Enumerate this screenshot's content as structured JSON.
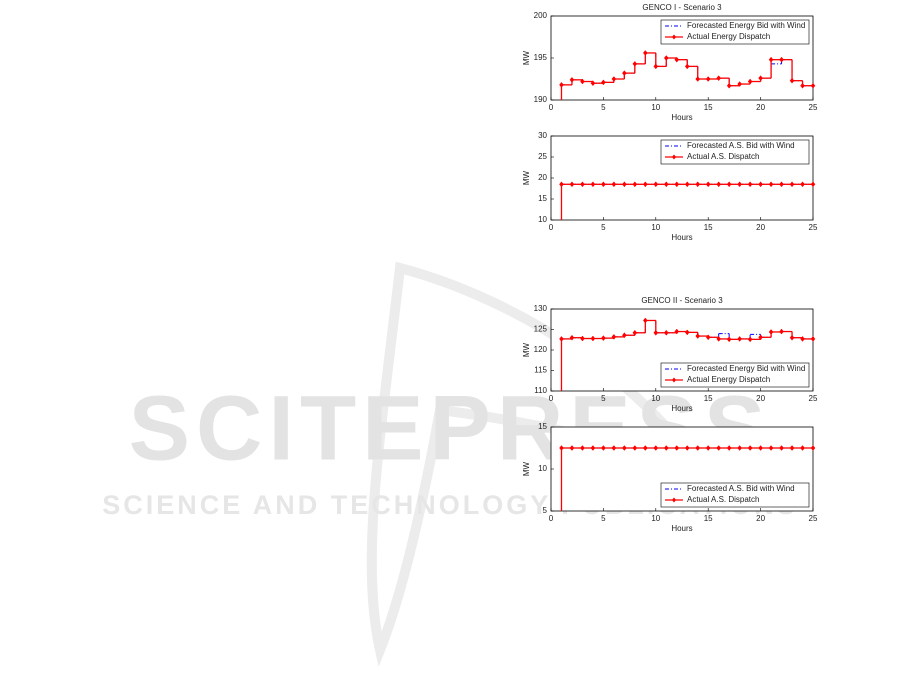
{
  "watermark": {
    "title": "SCITEPRESS",
    "subtitle": "SCIENCE AND TECHNOLOGY PUBLICATIONS"
  },
  "chart_data": [
    {
      "type": "step",
      "title": "GENCO I - Scenario 3",
      "x_label": "Hours",
      "y_label": "MW",
      "x": [
        1,
        2,
        3,
        4,
        5,
        6,
        7,
        8,
        9,
        10,
        11,
        12,
        13,
        14,
        15,
        16,
        17,
        18,
        19,
        20,
        21,
        22,
        23,
        24,
        25
      ],
      "series": [
        {
          "name": "Forecasted Energy Bid with Wind",
          "color": "#0000ff",
          "values": [
            191.8,
            192.4,
            192.2,
            192.0,
            192.1,
            192.5,
            193.2,
            194.3,
            195.6,
            194.0,
            195.0,
            194.8,
            194.0,
            192.5,
            192.5,
            192.6,
            191.7,
            191.9,
            192.2,
            192.6,
            194.3,
            194.8,
            192.3,
            191.7,
            191.7
          ]
        },
        {
          "name": "Actual Energy Dispatch",
          "color": "#ff0000",
          "values": [
            191.8,
            192.4,
            192.2,
            192.0,
            192.1,
            192.5,
            193.2,
            194.3,
            195.6,
            194.0,
            195.0,
            194.8,
            194.0,
            192.5,
            192.5,
            192.6,
            191.7,
            191.9,
            192.2,
            192.6,
            194.8,
            194.8,
            192.3,
            191.7,
            191.7
          ]
        }
      ],
      "xlim": [
        0,
        25
      ],
      "xticks": [
        0,
        5,
        10,
        15,
        20,
        25
      ],
      "ylim": [
        190,
        200
      ],
      "yticks": [
        190,
        195,
        200
      ],
      "legend": "upper right"
    },
    {
      "type": "step",
      "x_label": "Hours",
      "y_label": "MW",
      "x": [
        1,
        2,
        3,
        4,
        5,
        6,
        7,
        8,
        9,
        10,
        11,
        12,
        13,
        14,
        15,
        16,
        17,
        18,
        19,
        20,
        21,
        22,
        23,
        24,
        25
      ],
      "series": [
        {
          "name": "Forecasted A.S. Bid with Wind",
          "color": "#0000ff",
          "values": [
            18.5,
            18.5,
            18.5,
            18.5,
            18.5,
            18.5,
            18.5,
            18.5,
            18.5,
            18.5,
            18.5,
            18.5,
            18.5,
            18.5,
            18.5,
            18.5,
            18.5,
            18.5,
            18.5,
            18.5,
            18.5,
            18.5,
            18.5,
            18.5,
            18.5
          ]
        },
        {
          "name": "Actual A.S. Dispatch",
          "color": "#ff0000",
          "values": [
            18.5,
            18.5,
            18.5,
            18.5,
            18.5,
            18.5,
            18.5,
            18.5,
            18.5,
            18.5,
            18.5,
            18.5,
            18.5,
            18.5,
            18.5,
            18.5,
            18.5,
            18.5,
            18.5,
            18.5,
            18.5,
            18.5,
            18.5,
            18.5,
            18.5
          ]
        }
      ],
      "xlim": [
        0,
        25
      ],
      "xticks": [
        0,
        5,
        10,
        15,
        20,
        25
      ],
      "ylim": [
        10,
        30
      ],
      "yticks": [
        10,
        15,
        20,
        25,
        30
      ],
      "legend": "upper right"
    },
    {
      "type": "step",
      "title": "GENCO II - Scenario 3",
      "x_label": "Hours",
      "y_label": "MW",
      "x": [
        1,
        2,
        3,
        4,
        5,
        6,
        7,
        8,
        9,
        10,
        11,
        12,
        13,
        14,
        15,
        16,
        17,
        18,
        19,
        20,
        21,
        22,
        23,
        24,
        25
      ],
      "series": [
        {
          "name": "Forecasted Energy Bid with Wind",
          "color": "#0000ff",
          "values": [
            122.7,
            123.0,
            122.8,
            122.8,
            122.9,
            123.2,
            123.6,
            124.2,
            127.2,
            124.2,
            124.2,
            124.5,
            124.3,
            123.4,
            123.1,
            124.0,
            122.6,
            122.7,
            123.8,
            123.1,
            124.4,
            124.5,
            123.0,
            122.7,
            122.7
          ]
        },
        {
          "name": "Actual Energy Dispatch",
          "color": "#ff0000",
          "values": [
            122.7,
            123.0,
            122.8,
            122.8,
            122.9,
            123.2,
            123.6,
            124.2,
            127.2,
            124.2,
            124.2,
            124.5,
            124.3,
            123.4,
            123.1,
            122.7,
            122.6,
            122.7,
            122.6,
            123.1,
            124.4,
            124.5,
            123.0,
            122.7,
            122.7
          ]
        }
      ],
      "xlim": [
        0,
        25
      ],
      "xticks": [
        0,
        5,
        10,
        15,
        20,
        25
      ],
      "ylim": [
        110,
        130
      ],
      "yticks": [
        110,
        115,
        120,
        125,
        130
      ],
      "legend": "lower right"
    },
    {
      "type": "step",
      "x_label": "Hours",
      "y_label": "MW",
      "x": [
        1,
        2,
        3,
        4,
        5,
        6,
        7,
        8,
        9,
        10,
        11,
        12,
        13,
        14,
        15,
        16,
        17,
        18,
        19,
        20,
        21,
        22,
        23,
        24,
        25
      ],
      "series": [
        {
          "name": "Forecasted A.S. Bid with Wind",
          "color": "#0000ff",
          "values": [
            12.5,
            12.5,
            12.5,
            12.5,
            12.5,
            12.5,
            12.5,
            12.5,
            12.5,
            12.5,
            12.5,
            12.5,
            12.5,
            12.5,
            12.5,
            12.5,
            12.5,
            12.5,
            12.5,
            12.5,
            12.5,
            12.5,
            12.5,
            12.5,
            12.5
          ]
        },
        {
          "name": "Actual A.S. Dispatch",
          "color": "#ff0000",
          "values": [
            12.5,
            12.5,
            12.5,
            12.5,
            12.5,
            12.5,
            12.5,
            12.5,
            12.5,
            12.5,
            12.5,
            12.5,
            12.5,
            12.5,
            12.5,
            12.5,
            12.5,
            12.5,
            12.5,
            12.5,
            12.5,
            12.5,
            12.5,
            12.5,
            12.5
          ]
        }
      ],
      "xlim": [
        0,
        25
      ],
      "xticks": [
        0,
        5,
        10,
        15,
        20,
        25
      ],
      "ylim": [
        5,
        15
      ],
      "yticks": [
        5,
        10,
        15
      ],
      "legend": "lower right"
    }
  ]
}
